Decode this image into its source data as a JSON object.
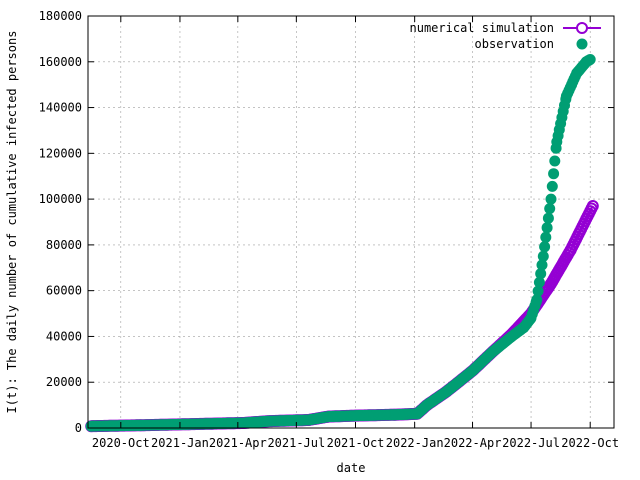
{
  "chart_data": {
    "type": "scatter",
    "title": "",
    "xlabel": "date",
    "ylabel": "I(t): The daily number of cumulative infected persons",
    "ylim": [
      0,
      180000
    ],
    "xlim": [
      "2020-08-11",
      "2022-11-07"
    ],
    "grid": true,
    "legend_position": "top-right",
    "x_ticks": [
      {
        "date": "2020-10-01",
        "label": "2020-Oct"
      },
      {
        "date": "2021-01-01",
        "label": "2021-Jan"
      },
      {
        "date": "2021-04-01",
        "label": "2021-Apr"
      },
      {
        "date": "2021-07-01",
        "label": "2021-Jul"
      },
      {
        "date": "2021-10-01",
        "label": "2021-Oct"
      },
      {
        "date": "2022-01-01",
        "label": "2022-Jan"
      },
      {
        "date": "2022-04-01",
        "label": "2022-Apr"
      },
      {
        "date": "2022-07-01",
        "label": "2022-Jul"
      },
      {
        "date": "2022-10-01",
        "label": "2022-Oct"
      }
    ],
    "y_ticks": [
      "0",
      "20000",
      "40000",
      "60000",
      "80000",
      "100000",
      "120000",
      "140000",
      "160000",
      "180000"
    ],
    "series": [
      {
        "name": "numerical simulation",
        "color": "#9400d3",
        "marker": "open-circle-line",
        "points": [
          [
            "2020-08-16",
            800
          ],
          [
            "2020-11-01",
            1200
          ],
          [
            "2021-01-20",
            1700
          ],
          [
            "2021-04-10",
            2200
          ],
          [
            "2021-05-20",
            3000
          ],
          [
            "2021-07-20",
            3500
          ],
          [
            "2021-08-20",
            5000
          ],
          [
            "2021-10-01",
            5400
          ],
          [
            "2021-12-01",
            5800
          ],
          [
            "2022-01-05",
            6200
          ],
          [
            "2022-01-20",
            10000
          ],
          [
            "2022-02-20",
            16000
          ],
          [
            "2022-04-01",
            25000
          ],
          [
            "2022-05-01",
            33000
          ],
          [
            "2022-06-01",
            41000
          ],
          [
            "2022-07-01",
            50000
          ],
          [
            "2022-08-01",
            63000
          ],
          [
            "2022-09-01",
            78000
          ],
          [
            "2022-10-05",
            97000
          ]
        ]
      },
      {
        "name": "observation",
        "color": "#009e73",
        "marker": "filled-circle",
        "points": [
          [
            "2020-08-16",
            800
          ],
          [
            "2020-11-01",
            1200
          ],
          [
            "2021-01-20",
            1700
          ],
          [
            "2021-04-10",
            2200
          ],
          [
            "2021-05-20",
            3000
          ],
          [
            "2021-07-20",
            3500
          ],
          [
            "2021-08-20",
            5000
          ],
          [
            "2021-10-01",
            5400
          ],
          [
            "2021-12-01",
            5800
          ],
          [
            "2022-01-05",
            6200
          ],
          [
            "2022-01-20",
            10000
          ],
          [
            "2022-02-20",
            16000
          ],
          [
            "2022-04-01",
            25000
          ],
          [
            "2022-05-01",
            33000
          ],
          [
            "2022-06-01",
            40000
          ],
          [
            "2022-06-20",
            44000
          ],
          [
            "2022-07-01",
            48000
          ],
          [
            "2022-07-10",
            56000
          ],
          [
            "2022-07-20",
            75000
          ],
          [
            "2022-08-01",
            100000
          ],
          [
            "2022-08-10",
            125000
          ],
          [
            "2022-08-25",
            145000
          ],
          [
            "2022-09-10",
            155000
          ],
          [
            "2022-09-25",
            160000
          ],
          [
            "2022-10-01",
            161000
          ]
        ]
      }
    ]
  }
}
